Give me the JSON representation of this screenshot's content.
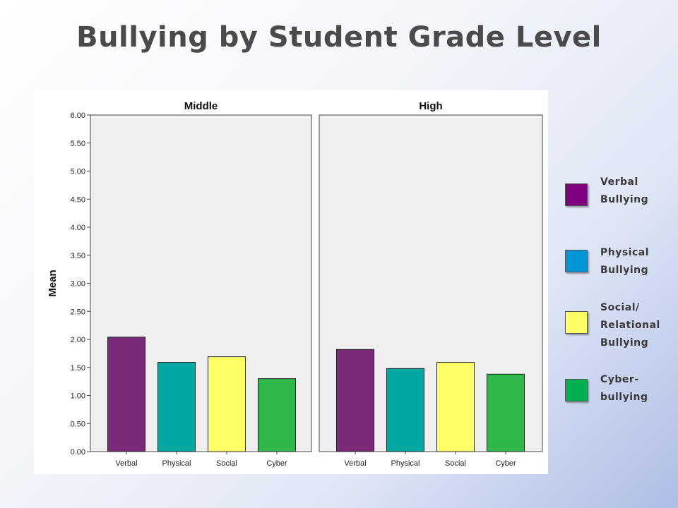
{
  "slide": {
    "title": "Bullying by Student Grade Level"
  },
  "chart_data": {
    "type": "bar",
    "ylabel": "Mean",
    "ylim": [
      0,
      6
    ],
    "yticks": [
      "0.00",
      "0.50",
      "1.00",
      "1.50",
      "2.00",
      "2.50",
      "3.00",
      "3.50",
      "4.00",
      "4.50",
      "5.00",
      "5.50",
      "6.00"
    ],
    "categories": [
      "Verbal",
      "Physical",
      "Social",
      "Cyber"
    ],
    "colors": [
      "#7b2a7a",
      "#00a7a3",
      "#ffff66",
      "#2fb84a"
    ],
    "panels": [
      {
        "title": "Middle",
        "values": [
          2.04,
          1.59,
          1.69,
          1.3
        ]
      },
      {
        "title": "High",
        "values": [
          1.82,
          1.48,
          1.59,
          1.38
        ]
      }
    ],
    "grid": false,
    "legend_position": "right"
  },
  "legend": {
    "items": [
      {
        "lines": [
          "Verbal",
          "Bullying"
        ],
        "color": "#7f007f"
      },
      {
        "lines": [
          "Physical",
          "Bullying"
        ],
        "color": "#0096d6"
      },
      {
        "lines": [
          "Social/",
          "Relational",
          "Bullying"
        ],
        "color": "#ffff66"
      },
      {
        "lines": [
          "Cyber-",
          "bullying"
        ],
        "color": "#00b050"
      }
    ]
  }
}
